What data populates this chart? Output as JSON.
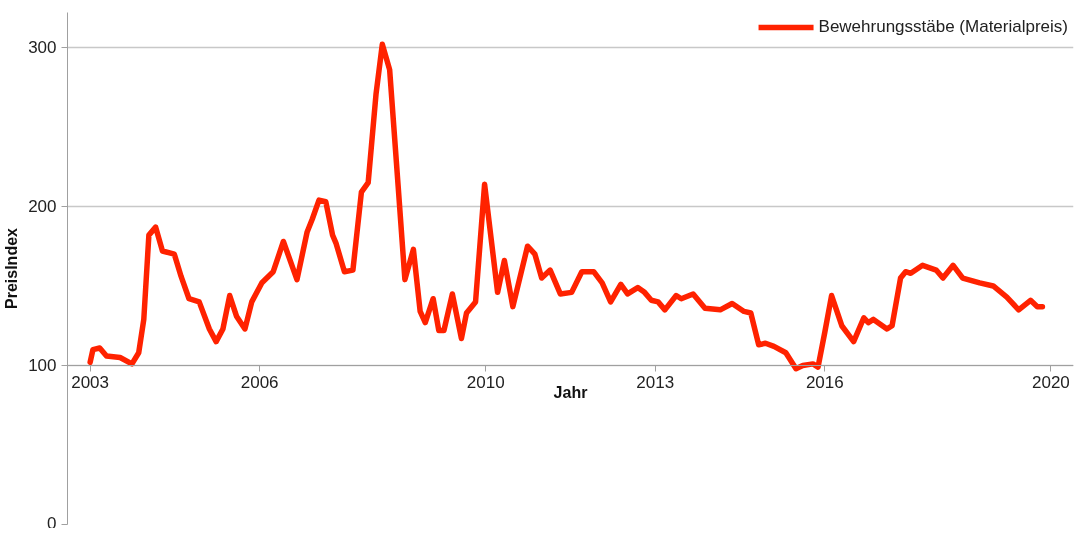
{
  "chart_data": {
    "type": "line",
    "xlabel": "Jahr",
    "ylabel": "PreisIndex",
    "x": [
      2003.0,
      2003.05,
      2003.17,
      2003.29,
      2003.53,
      2003.74,
      2003.86,
      2003.95,
      2004.04,
      2004.16,
      2004.28,
      2004.49,
      2004.61,
      2004.75,
      2004.93,
      2005.11,
      2005.23,
      2005.35,
      2005.47,
      2005.59,
      2005.74,
      2005.86,
      2006.04,
      2006.24,
      2006.42,
      2006.66,
      2006.84,
      2006.93,
      2007.05,
      2007.17,
      2007.29,
      2007.35,
      2007.5,
      2007.65,
      2007.8,
      2007.92,
      2008.06,
      2008.17,
      2008.3,
      2008.45,
      2008.57,
      2008.72,
      2008.84,
      2008.93,
      2009.07,
      2009.17,
      2009.26,
      2009.41,
      2009.57,
      2009.66,
      2009.82,
      2009.98,
      2010.21,
      2010.33,
      2010.48,
      2010.74,
      2010.87,
      2010.99,
      2011.14,
      2011.32,
      2011.52,
      2011.7,
      2011.91,
      2012.06,
      2012.21,
      2012.39,
      2012.51,
      2012.69,
      2012.81,
      2012.93,
      2013.05,
      2013.17,
      2013.37,
      2013.46,
      2013.67,
      2013.88,
      2014.15,
      2014.36,
      2014.57,
      2014.69,
      2014.83,
      2014.95,
      2015.1,
      2015.31,
      2015.49,
      2015.61,
      2015.79,
      2015.88,
      2016.0,
      2016.12,
      2016.3,
      2016.51,
      2016.69,
      2016.77,
      2016.86,
      2017.1,
      2017.19,
      2017.34,
      2017.43,
      2017.52,
      2017.73,
      2017.97,
      2018.09,
      2018.27,
      2018.44,
      2018.74,
      2018.98,
      2019.22,
      2019.43,
      2019.64,
      2019.76,
      2019.85
    ],
    "series": [
      {
        "name": "Bewehrungsstäbe (Materialpreis)",
        "color": "#ff2200",
        "values": [
          102,
          110,
          111,
          106,
          105,
          101,
          108,
          129,
          182,
          187,
          172,
          170,
          156,
          142,
          140,
          123,
          115,
          123,
          144,
          131,
          123,
          140,
          152,
          159,
          178,
          154,
          184,
          192,
          204,
          203,
          182,
          177,
          159,
          160,
          209,
          215,
          271,
          302,
          286,
          213,
          154,
          173,
          134,
          127,
          142,
          122,
          122,
          145,
          117,
          133,
          140,
          214,
          146,
          166,
          137,
          175,
          170,
          155,
          160,
          145,
          146,
          159,
          159,
          152,
          140,
          151,
          145,
          149,
          146,
          141,
          140,
          135,
          144,
          142,
          145,
          136,
          135,
          139,
          134,
          133,
          113,
          114,
          112,
          108,
          98,
          100,
          101,
          99,
          121,
          144,
          125,
          115,
          130,
          127,
          129,
          123,
          125,
          155,
          159,
          158,
          163,
          160,
          155,
          163,
          155,
          152,
          150,
          143,
          135,
          141,
          137,
          137
        ]
      }
    ],
    "xlim": [
      2002.6,
      2020.4
    ],
    "xticks": [
      2003,
      2006,
      2010,
      2013,
      2016,
      2020
    ],
    "ylim": [
      0,
      322
    ],
    "yticks": [
      0,
      100,
      200,
      300
    ],
    "grid": "y",
    "legend": "top right",
    "line_style": "solid",
    "marker": "none"
  }
}
